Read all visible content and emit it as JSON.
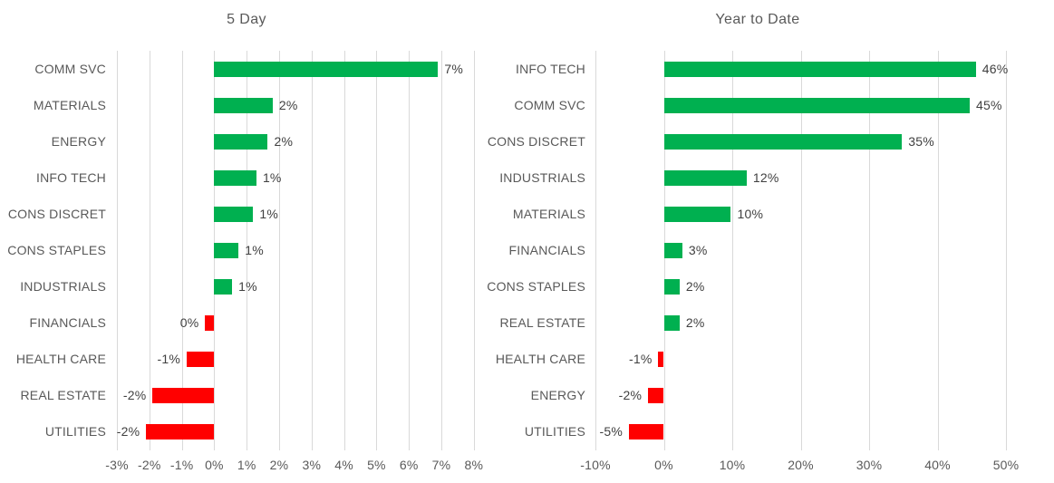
{
  "page": {
    "background": "#FFFFFF"
  },
  "colors": {
    "positive_bar": "#00B050",
    "negative_bar": "#FF0000",
    "gridline": "#D9D9D9",
    "title_text": "#595959",
    "category_text": "#595959",
    "tick_text": "#595959",
    "value_text": "#404040"
  },
  "chart_data": [
    {
      "type": "bar",
      "orientation": "horizontal",
      "title": "5 Day",
      "categories": [
        "COMM SVC",
        "MATERIALS",
        "ENERGY",
        "INFO TECH",
        "CONS DISCRET",
        "CONS STAPLES",
        "INDUSTRIALS",
        "FINANCIALS",
        "HEALTH CARE",
        "REAL ESTATE",
        "UTILITIES"
      ],
      "values": [
        6.9,
        1.8,
        1.65,
        1.3,
        1.2,
        0.75,
        0.55,
        -0.28,
        -0.85,
        -1.9,
        -2.1
      ],
      "value_labels": [
        "7%",
        "2%",
        "2%",
        "1%",
        "1%",
        "1%",
        "1%",
        "0%",
        "-1%",
        "-2%",
        "-2%"
      ],
      "xlim": [
        -3,
        8
      ],
      "tick_step": 1,
      "tick_labels": [
        "-3%",
        "-2%",
        "-1%",
        "0%",
        "1%",
        "2%",
        "3%",
        "4%",
        "5%",
        "6%",
        "7%",
        "8%"
      ],
      "grid": true,
      "legend": false,
      "color_rule": "positive bars green, negative bars red"
    },
    {
      "type": "bar",
      "orientation": "horizontal",
      "title": "Year to Date",
      "categories": [
        "INFO TECH",
        "COMM SVC",
        "CONS DISCRET",
        "INDUSTRIALS",
        "MATERIALS",
        "FINANCIALS",
        "CONS STAPLES",
        "REAL ESTATE",
        "HEALTH CARE",
        "ENERGY",
        "UTILITIES"
      ],
      "values": [
        45.6,
        44.7,
        34.8,
        12.1,
        9.8,
        2.7,
        2.3,
        2.3,
        -0.8,
        -2.3,
        -5.1
      ],
      "value_labels": [
        "46%",
        "45%",
        "35%",
        "12%",
        "10%",
        "3%",
        "2%",
        "2%",
        "-1%",
        "-2%",
        "-5%"
      ],
      "xlim": [
        -10,
        50
      ],
      "tick_step": 10,
      "tick_labels": [
        "-10%",
        "0%",
        "10%",
        "20%",
        "30%",
        "40%",
        "50%"
      ],
      "grid": true,
      "legend": false,
      "color_rule": "positive bars green, negative bars red"
    }
  ]
}
